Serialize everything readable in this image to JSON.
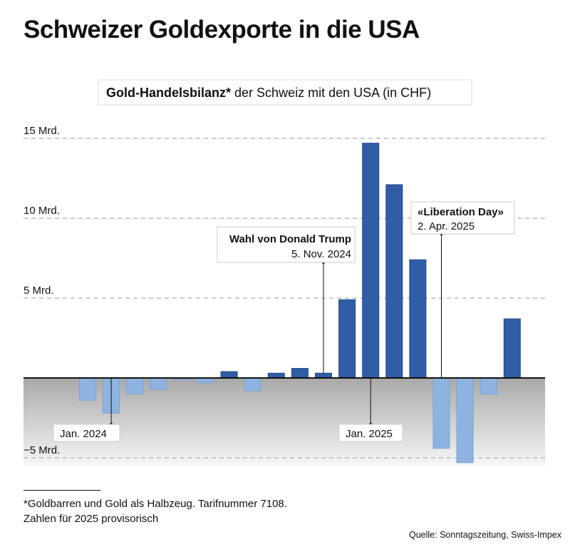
{
  "title": "Schweizer Goldexporte in die USA",
  "chart_data": {
    "type": "bar",
    "subtitle_bold": "Gold-Handelsbilanz*",
    "subtitle_rest": " der Schweiz mit den USA (in CHF)",
    "ylim": [
      -5.5,
      15.5
    ],
    "yticks": [
      {
        "value": 15,
        "label": "15 Mrd."
      },
      {
        "value": 10,
        "label": "10 Mrd."
      },
      {
        "value": 5,
        "label": "5 Mrd."
      },
      {
        "value": -5,
        "label": "−5 Mrd."
      }
    ],
    "grid": true,
    "values": [
      -1.4,
      -2.2,
      -1.0,
      -0.7,
      -0.1,
      -0.3,
      0.4,
      -0.8,
      0.3,
      0.6,
      0.3,
      4.9,
      14.7,
      12.1,
      7.4,
      -4.4,
      -5.3,
      -1.0,
      3.7
    ],
    "positive_color": "#2f5da6",
    "negative_color": "#8fb3e0",
    "annotations": [
      {
        "index": 1,
        "text": "Jan. 2024",
        "bold": ""
      },
      {
        "index": 10,
        "text": "5. Nov. 2024",
        "bold": "Wahl von Donald Trump"
      },
      {
        "index": 12,
        "text": "Jan. 2025",
        "bold": ""
      },
      {
        "index": 15,
        "text": "2. Apr. 2025",
        "bold": "«Liberation Day»"
      }
    ]
  },
  "footnote": {
    "line1": "*Goldbarren und Gold als Halbzeug. Tarifnummer 7108.",
    "line2": "Zahlen für 2025 provisorisch"
  },
  "source": "Quelle: Sonntagszeitung, Swiss-Impex"
}
